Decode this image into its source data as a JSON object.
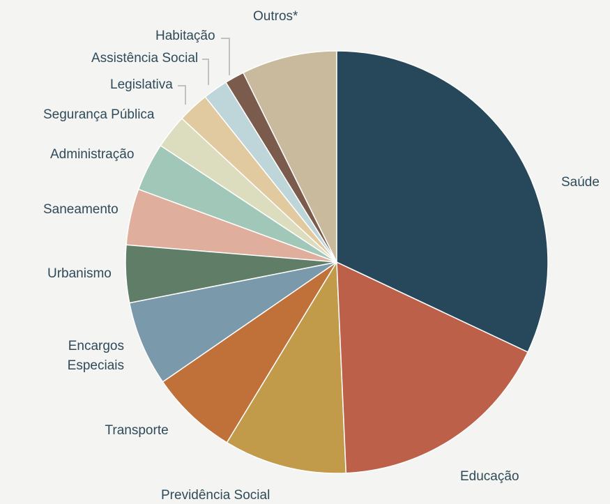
{
  "chart_data": {
    "type": "pie",
    "categories": [
      "Saúde",
      "Educação",
      "Previdência Social",
      "Transporte",
      "Encargos Especiais",
      "Urbanismo",
      "Saneamento",
      "Administração",
      "Segurança Pública",
      "Legislativa",
      "Assistência Social",
      "Habitação",
      "Outros*"
    ],
    "values": [
      32,
      17.3,
      9.4,
      6.7,
      6.5,
      4.4,
      4.3,
      3.7,
      2.6,
      2.4,
      1.9,
      1.5,
      7.3
    ],
    "colors": [
      "#27485b",
      "#bd604a",
      "#c19a4a",
      "#bf7139",
      "#7a9aab",
      "#5f7d67",
      "#dfae9c",
      "#a1c7b8",
      "#dcdcbe",
      "#e1c9a0",
      "#bed5da",
      "#7b5b4b",
      "#c9b99d"
    ]
  }
}
